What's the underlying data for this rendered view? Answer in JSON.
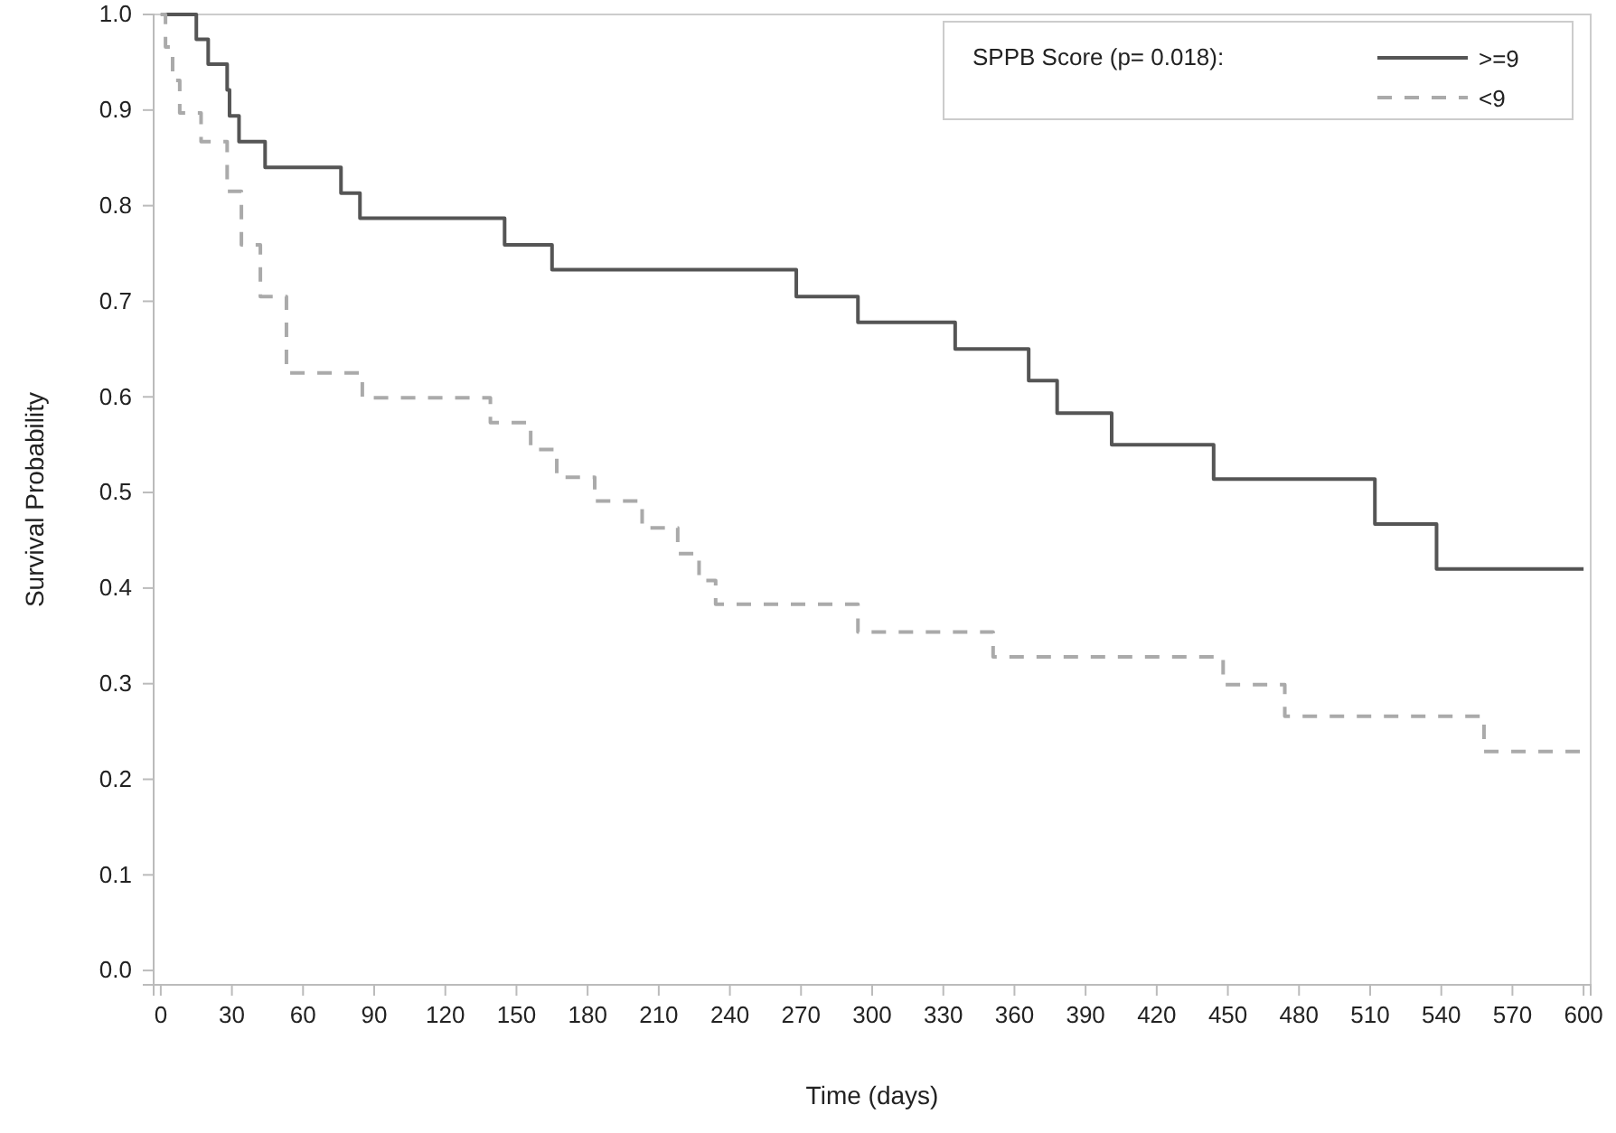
{
  "chart_data": {
    "type": "step",
    "xlabel": "Time (days)",
    "ylabel": "Survival Probability",
    "legend_title": "SPPB Score (p= 0.018):",
    "legend": "top right",
    "grid": false,
    "xlim": [
      -3,
      603
    ],
    "ylim": [
      -0.015,
      1.0
    ],
    "xticks": [
      0,
      30,
      60,
      90,
      120,
      150,
      180,
      210,
      240,
      270,
      300,
      330,
      360,
      390,
      420,
      450,
      480,
      510,
      540,
      570,
      600
    ],
    "yticks": [
      {
        "value": 0,
        "label": "0.0"
      },
      0.1,
      0.2,
      0.3,
      0.4,
      0.5,
      0.6,
      0.7,
      0.8,
      0.9,
      {
        "value": 1,
        "label": "1.0"
      }
    ],
    "series": [
      {
        "name": ">=9",
        "color": "#555555",
        "line_style": "solid",
        "x": [
          0,
          15,
          20,
          28,
          29,
          33,
          44,
          76,
          84,
          145,
          165,
          268,
          294,
          335,
          366,
          378,
          401,
          444,
          512,
          538,
          600
        ],
        "values": [
          1.0,
          0.974,
          0.948,
          0.921,
          0.894,
          0.867,
          0.84,
          0.813,
          0.787,
          0.759,
          0.733,
          0.705,
          0.678,
          0.65,
          0.617,
          0.583,
          0.55,
          0.514,
          0.467,
          0.42,
          0.42
        ]
      },
      {
        "name": "<9",
        "color": "#aaaaaa",
        "line_style": "dashed",
        "x": [
          0,
          2,
          5,
          8,
          17,
          28,
          34,
          42,
          53,
          85,
          139,
          156,
          167,
          183,
          203,
          218,
          227,
          234,
          294,
          351,
          448,
          474,
          558,
          600
        ],
        "values": [
          1.0,
          0.966,
          0.931,
          0.897,
          0.867,
          0.815,
          0.759,
          0.705,
          0.625,
          0.599,
          0.573,
          0.545,
          0.516,
          0.491,
          0.463,
          0.436,
          0.408,
          0.383,
          0.354,
          0.328,
          0.299,
          0.266,
          0.229,
          0.229
        ]
      }
    ]
  }
}
